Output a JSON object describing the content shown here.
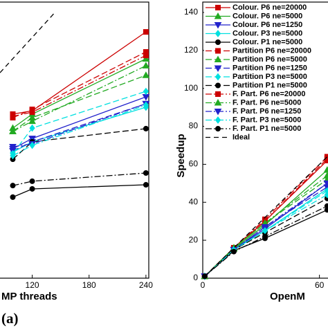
{
  "chart_data": [
    {
      "type": "line",
      "xlabel": "MP threads",
      "x": [
        99.5,
        120,
        240
      ],
      "xlim": [
        86,
        243
      ],
      "ylim": [
        0,
        140
      ],
      "xticks": [
        120,
        180,
        240
      ],
      "series": [
        {
          "color": "#cc0000",
          "dash": "solid",
          "marker": "square",
          "values": [
            83.6,
            85.3,
            125.5
          ]
        },
        {
          "color": "#22aa22",
          "dash": "solid",
          "marker": "triangle",
          "values": [
            76.5,
            83.6,
            111.8
          ]
        },
        {
          "color": "#2222cc",
          "dash": "solid",
          "marker": "triangle-down",
          "values": [
            65.9,
            71.2,
            92.4
          ]
        },
        {
          "color": "#00e0e0",
          "dash": "solid",
          "marker": "diamond",
          "values": [
            64.2,
            69.5,
            87.1
          ]
        },
        {
          "color": "#000000",
          "dash": "solid",
          "marker": "circle",
          "values": [
            41.3,
            45.5,
            47.6
          ]
        },
        {
          "color": "#cc0000",
          "dash": "dashed",
          "marker": "square",
          "values": [
            81.8,
            86.0,
            115.3
          ]
        },
        {
          "color": "#22aa22",
          "dash": "dashed",
          "marker": "triangle",
          "values": [
            74.8,
            81.8,
            103.4
          ]
        },
        {
          "color": "#2222cc",
          "dash": "dashed",
          "marker": "triangle-down",
          "values": [
            64.9,
            69.5,
            88.9
          ]
        },
        {
          "color": "#00e0e0",
          "dash": "dashed",
          "marker": "diamond",
          "values": [
            63.5,
            76.5,
            95.2
          ]
        },
        {
          "color": "#000000",
          "dash": "dashed",
          "marker": "circle",
          "values": [
            60.6,
            69.5,
            76.2
          ]
        },
        {
          "color": "#cc0000",
          "dash": "dashdot",
          "marker": "square",
          "values": [
            82.5,
            84.6,
            113.5
          ]
        },
        {
          "color": "#22aa22",
          "dash": "dashdot",
          "marker": "triangle",
          "values": [
            74.8,
            80.0,
            108.3
          ]
        },
        {
          "color": "#2222cc",
          "dash": "dashdot",
          "marker": "triangle-down",
          "values": [
            67.0,
            68.4,
            88.9
          ]
        },
        {
          "color": "#00e0e0",
          "dash": "dashdot",
          "marker": "diamond",
          "values": [
            62.4,
            67.7,
            88.2
          ]
        },
        {
          "color": "#000000",
          "dash": "dashdot",
          "marker": "circle",
          "values": [
            47.2,
            49.4,
            53.6
          ]
        },
        {
          "color": "#000000",
          "dash": "ideal",
          "marker": "none",
          "x": [
            86,
            144
          ],
          "values": [
            104.7,
            135.4
          ]
        }
      ]
    },
    {
      "type": "line",
      "ylabel": "Speedup",
      "xlabel": "OpenM",
      "x": [
        1,
        16,
        32,
        64
      ],
      "xlim": [
        0,
        64.4
      ],
      "ylim": [
        0,
        140
      ],
      "xticks": [
        0,
        60
      ],
      "yticks": [
        0,
        20,
        40,
        60,
        80,
        100,
        120,
        140
      ],
      "series": [
        {
          "name": "Colour. P6 ne=20000",
          "color": "#cc0000",
          "dash": "solid",
          "marker": "square",
          "values": [
            1,
            16,
            30,
            62
          ]
        },
        {
          "name": "Colour. P6 ne=5000",
          "color": "#22aa22",
          "dash": "solid",
          "marker": "triangle",
          "values": [
            1,
            15.5,
            28,
            57
          ]
        },
        {
          "name": "Colour. P6 ne=1250",
          "color": "#2222cc",
          "dash": "solid",
          "marker": "triangle-down",
          "values": [
            1,
            15,
            26,
            50
          ]
        },
        {
          "name": "Colour. P3 ne=5000",
          "color": "#00e0e0",
          "dash": "solid",
          "marker": "diamond",
          "values": [
            1,
            15,
            25,
            47
          ]
        },
        {
          "name": "Colour. P1 ne=5000",
          "color": "#000000",
          "dash": "solid",
          "marker": "circle",
          "values": [
            1,
            14.5,
            21,
            36
          ]
        },
        {
          "name": "Partition P6 ne=20000",
          "color": "#cc0000",
          "dash": "dashed",
          "marker": "square",
          "values": [
            1,
            16,
            30,
            63
          ]
        },
        {
          "name": "Partition P6 ne=5000",
          "color": "#22aa22",
          "dash": "dashed",
          "marker": "triangle",
          "values": [
            1,
            16,
            29,
            52
          ]
        },
        {
          "name": "Partition P6 ne=1250",
          "color": "#2222cc",
          "dash": "dashed",
          "marker": "triangle-down",
          "values": [
            1,
            15,
            27,
            48
          ]
        },
        {
          "name": "Partition P3 ne=5000",
          "color": "#00e0e0",
          "dash": "dashed",
          "marker": "diamond",
          "values": [
            1,
            15,
            25,
            46
          ]
        },
        {
          "name": "Partition P1 ne=5000",
          "color": "#000000",
          "dash": "dashed",
          "marker": "circle",
          "values": [
            1,
            15,
            24,
            42
          ]
        },
        {
          "name": "F. Part. P6 ne=20000",
          "color": "#cc0000",
          "dash": "dashdot",
          "marker": "square",
          "values": [
            1,
            16,
            31,
            64
          ]
        },
        {
          "name": "F. Part. P6 ne=5000",
          "color": "#22aa22",
          "dash": "dashdot",
          "marker": "triangle",
          "values": [
            1,
            16,
            29,
            54
          ]
        },
        {
          "name": "F. Part. P6 ne=1250",
          "color": "#2222cc",
          "dash": "dashdot",
          "marker": "triangle-down",
          "values": [
            1,
            15,
            27,
            50
          ]
        },
        {
          "name": "F. Part. P3 ne=5000",
          "color": "#00e0e0",
          "dash": "dashdot",
          "marker": "diamond",
          "values": [
            1,
            15,
            25,
            44
          ]
        },
        {
          "name": "F. Part. P1 ne=5000",
          "color": "#000000",
          "dash": "dashdot",
          "marker": "circle",
          "values": [
            1,
            14,
            22,
            38
          ]
        },
        {
          "name": "Ideal",
          "color": "#000000",
          "dash": "ideal",
          "marker": "none",
          "values": [
            1,
            16,
            32,
            64
          ]
        }
      ]
    }
  ],
  "panel_label": "(a)"
}
